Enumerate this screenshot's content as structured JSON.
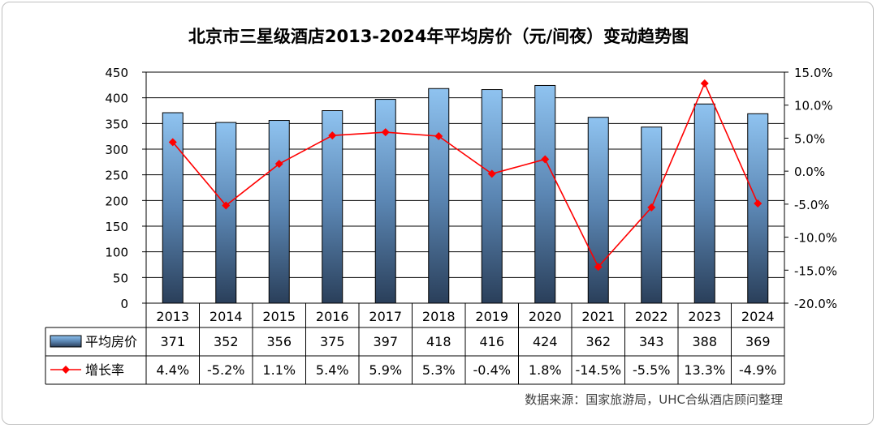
{
  "chart_data": {
    "type": "bar+line",
    "title": "北京市三星级酒店2013-2024年平均房价（元/间夜）变动趋势图",
    "categories": [
      "2013",
      "2014",
      "2015",
      "2016",
      "2017",
      "2018",
      "2019",
      "2020",
      "2021",
      "2022",
      "2023",
      "2024"
    ],
    "series": [
      {
        "name": "平均房价",
        "type": "bar",
        "axis": "left",
        "values": [
          371,
          352,
          356,
          375,
          397,
          418,
          416,
          424,
          362,
          343,
          388,
          369
        ],
        "labels": [
          "371",
          "352",
          "356",
          "375",
          "397",
          "418",
          "416",
          "424",
          "362",
          "343",
          "388",
          "369"
        ],
        "color": "#8fc3f0"
      },
      {
        "name": "增长率",
        "type": "line",
        "axis": "right",
        "values": [
          4.4,
          -5.2,
          1.1,
          5.4,
          5.9,
          5.3,
          -0.4,
          1.8,
          -14.5,
          -5.5,
          13.3,
          -4.9
        ],
        "labels": [
          "4.4%",
          "-5.2%",
          "1.1%",
          "5.4%",
          "5.9%",
          "5.3%",
          "-0.4%",
          "1.8%",
          "-14.5%",
          "-5.5%",
          "13.3%",
          "-4.9%"
        ],
        "color": "#ff0000"
      }
    ],
    "y_left": {
      "lim": [
        0,
        450
      ],
      "ticks": [
        0,
        50,
        100,
        150,
        200,
        250,
        300,
        350,
        400,
        450
      ],
      "tick_labels": [
        "0",
        "50",
        "100",
        "150",
        "200",
        "250",
        "300",
        "350",
        "400",
        "450"
      ]
    },
    "y_right": {
      "lim": [
        -20,
        15
      ],
      "ticks": [
        -20,
        -15,
        -10,
        -5,
        0,
        5,
        10,
        15
      ],
      "tick_labels": [
        "-20.0%",
        "-15.0%",
        "-10.0%",
        "-5.0%",
        "0.0%",
        "5.0%",
        "10.0%",
        "15.0%"
      ]
    },
    "grid": true,
    "legend": "data-table",
    "source": "数据来源：国家旅游局，UHC合纵酒店顾问整理"
  }
}
